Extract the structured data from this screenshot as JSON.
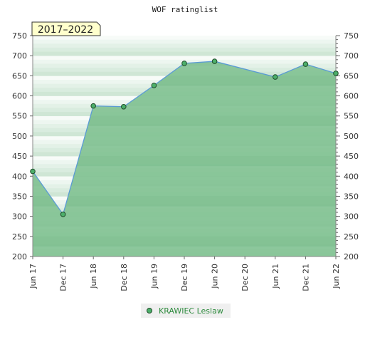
{
  "chart_data": {
    "type": "area",
    "title": "WOF ratinglist",
    "period_badge": "2017–2022",
    "x_tick_labels": [
      "Jun 17",
      "Dec 17",
      "Jun 18",
      "Dec 18",
      "Jun 19",
      "Dec 19",
      "Jun 20",
      "Dec 20",
      "Jun 21",
      "Dec 21",
      "Jun 22"
    ],
    "ylim": [
      200,
      750
    ],
    "y_ticks": [
      200,
      250,
      300,
      350,
      400,
      450,
      500,
      550,
      600,
      650,
      700,
      750
    ],
    "y_axis_both_sides": true,
    "series": [
      {
        "name": "KRAWIEC Leslaw",
        "x": [
          "Jun 17",
          "Dec 17",
          "Jun 18",
          "Dec 18",
          "Jun 19",
          "Dec 19",
          "Jun 20",
          "Jun 21",
          "Dec 21",
          "Jun 22"
        ],
        "values": [
          412,
          305,
          575,
          573,
          626,
          681,
          686,
          647,
          679,
          656
        ]
      }
    ],
    "legend_placement": "bottom-center",
    "colors": {
      "line": "#5b9bd5",
      "fill": "#7dbf8e",
      "marker": "#4caf6a",
      "badge_bg": "#ffffcc"
    }
  }
}
